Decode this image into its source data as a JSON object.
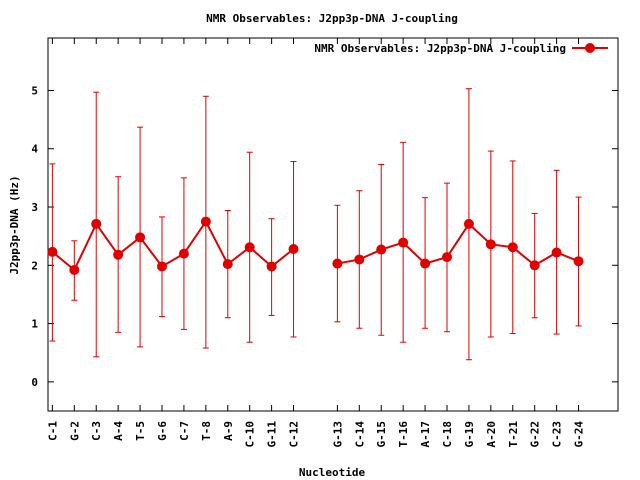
{
  "chart_data": {
    "type": "line",
    "title": "NMR Observables: J2pp3p-DNA J-coupling",
    "xlabel": "Nucleotide",
    "ylabel": "J2pp3p-DNA (Hz)",
    "ylim": [
      -0.5,
      5.9
    ],
    "yticks": [
      0,
      1,
      2,
      3,
      4,
      5
    ],
    "grid": false,
    "legend_position": "top-right",
    "series_color": "#e00000",
    "categories": [
      "C-1",
      "G-2",
      "C-3",
      "A-4",
      "T-5",
      "G-6",
      "C-7",
      "T-8",
      "A-9",
      "C-10",
      "G-11",
      "C-12",
      "",
      "G-13",
      "C-14",
      "G-15",
      "T-16",
      "A-17",
      "C-18",
      "G-19",
      "A-20",
      "T-21",
      "G-22",
      "C-23",
      "G-24"
    ],
    "series": [
      {
        "name": "NMR Observables: J2pp3p-DNA J-coupling",
        "values": [
          2.23,
          1.92,
          2.71,
          2.18,
          2.48,
          1.98,
          2.2,
          2.75,
          2.02,
          2.31,
          1.98,
          2.28,
          null,
          2.03,
          2.1,
          2.27,
          2.39,
          2.03,
          2.14,
          2.71,
          2.36,
          2.31,
          2.0,
          2.22,
          2.07
        ],
        "error_low": [
          0.7,
          1.4,
          0.43,
          0.85,
          0.6,
          1.12,
          0.9,
          0.58,
          1.1,
          0.68,
          1.14,
          0.77,
          null,
          1.03,
          0.92,
          0.8,
          0.68,
          0.92,
          0.86,
          0.38,
          0.77,
          0.83,
          1.1,
          0.82,
          0.96
        ],
        "error_high": [
          3.74,
          2.42,
          4.97,
          3.52,
          4.37,
          2.83,
          3.5,
          4.9,
          2.94,
          3.94,
          2.8,
          3.78,
          null,
          3.03,
          3.28,
          3.73,
          4.11,
          3.16,
          3.41,
          5.03,
          3.96,
          3.79,
          2.89,
          3.63,
          3.17
        ]
      }
    ]
  }
}
